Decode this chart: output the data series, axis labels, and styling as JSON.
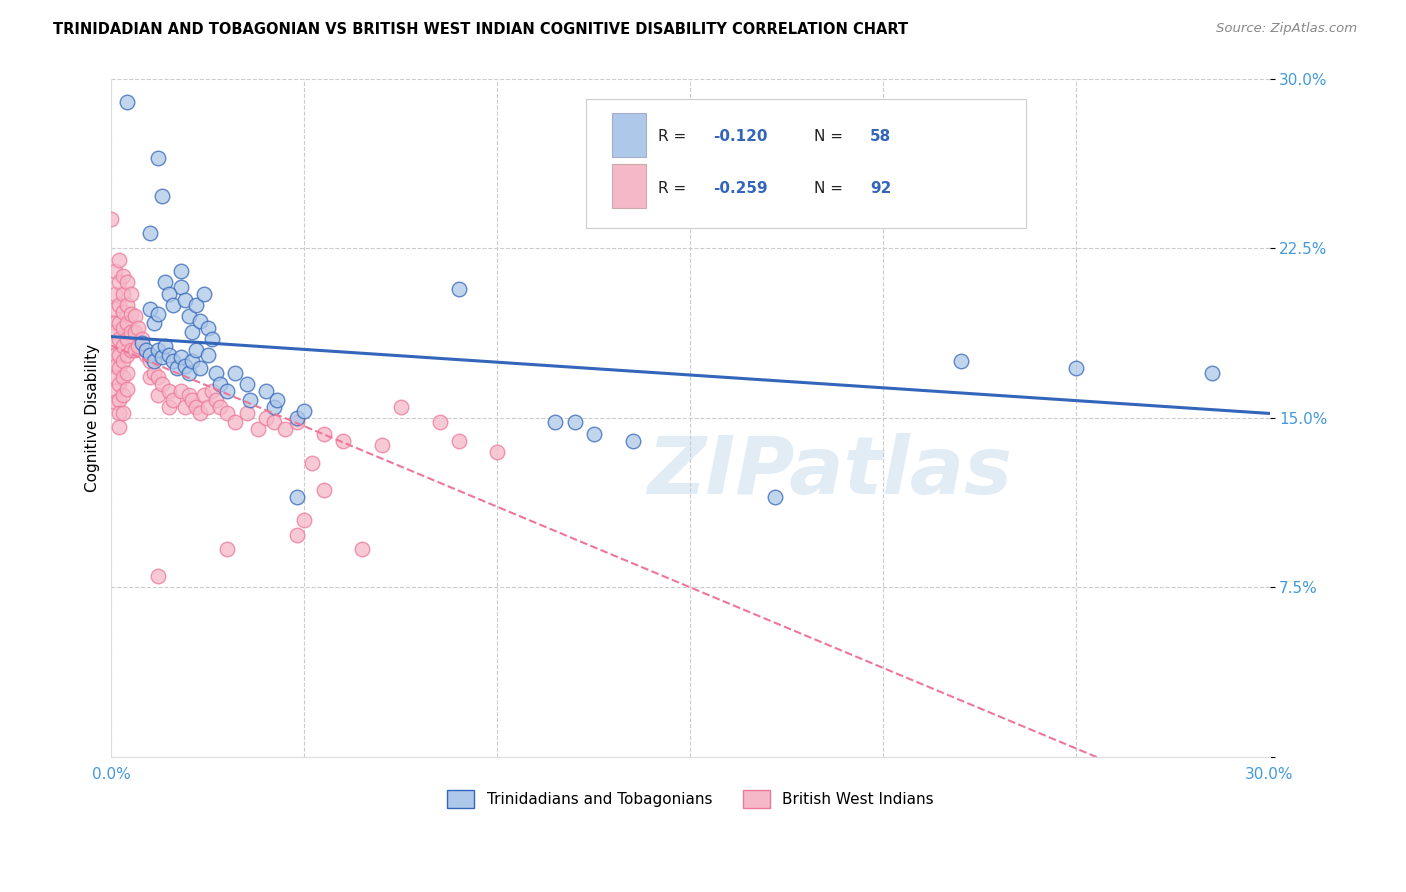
{
  "title": "TRINIDADIAN AND TOBAGONIAN VS BRITISH WEST INDIAN COGNITIVE DISABILITY CORRELATION CHART",
  "source": "Source: ZipAtlas.com",
  "ylabel": "Cognitive Disability",
  "xlim": [
    0.0,
    0.3
  ],
  "ylim": [
    0.0,
    0.3
  ],
  "xticks": [
    0.0,
    0.05,
    0.1,
    0.15,
    0.2,
    0.25,
    0.3
  ],
  "yticks": [
    0.0,
    0.075,
    0.15,
    0.225,
    0.3
  ],
  "xticklabels": [
    "0.0%",
    "",
    "",
    "",
    "",
    "",
    "30.0%"
  ],
  "yticklabels": [
    "",
    "7.5%",
    "15.0%",
    "22.5%",
    "30.0%"
  ],
  "grid_color": "#cccccc",
  "background_color": "#ffffff",
  "color_blue": "#adc8e8",
  "color_pink": "#f5b8c8",
  "line_blue": "#3366bb",
  "line_pink": "#ee7799",
  "tick_color": "#4499dd",
  "watermark": "ZIPatlas",
  "legend_label1": "Trinidadians and Tobagonians",
  "legend_label2": "British West Indians",
  "legend_R1": "R = ",
  "legend_V1": "-0.120",
  "legend_N1_label": "N = ",
  "legend_N1_val": "58",
  "legend_R2": "R = ",
  "legend_V2": "-0.259",
  "legend_N2_label": "N = ",
  "legend_N2_val": "92",
  "blue_trend": [
    0.0,
    0.186,
    0.3,
    0.152
  ],
  "pink_trend": [
    0.0,
    0.182,
    0.3,
    -0.032
  ],
  "scatter_blue": [
    [
      0.004,
      0.29
    ],
    [
      0.012,
      0.265
    ],
    [
      0.013,
      0.248
    ],
    [
      0.01,
      0.232
    ],
    [
      0.018,
      0.208
    ],
    [
      0.01,
      0.198
    ],
    [
      0.011,
      0.192
    ],
    [
      0.012,
      0.196
    ],
    [
      0.014,
      0.21
    ],
    [
      0.015,
      0.205
    ],
    [
      0.016,
      0.2
    ],
    [
      0.018,
      0.215
    ],
    [
      0.019,
      0.202
    ],
    [
      0.02,
      0.195
    ],
    [
      0.021,
      0.188
    ],
    [
      0.022,
      0.2
    ],
    [
      0.023,
      0.193
    ],
    [
      0.024,
      0.205
    ],
    [
      0.025,
      0.19
    ],
    [
      0.026,
      0.185
    ],
    [
      0.008,
      0.183
    ],
    [
      0.009,
      0.18
    ],
    [
      0.01,
      0.178
    ],
    [
      0.011,
      0.175
    ],
    [
      0.012,
      0.18
    ],
    [
      0.013,
      0.177
    ],
    [
      0.014,
      0.182
    ],
    [
      0.015,
      0.178
    ],
    [
      0.016,
      0.175
    ],
    [
      0.017,
      0.172
    ],
    [
      0.018,
      0.177
    ],
    [
      0.019,
      0.173
    ],
    [
      0.02,
      0.17
    ],
    [
      0.021,
      0.175
    ],
    [
      0.022,
      0.18
    ],
    [
      0.023,
      0.172
    ],
    [
      0.025,
      0.178
    ],
    [
      0.027,
      0.17
    ],
    [
      0.028,
      0.165
    ],
    [
      0.03,
      0.162
    ],
    [
      0.032,
      0.17
    ],
    [
      0.035,
      0.165
    ],
    [
      0.036,
      0.158
    ],
    [
      0.04,
      0.162
    ],
    [
      0.042,
      0.155
    ],
    [
      0.043,
      0.158
    ],
    [
      0.048,
      0.15
    ],
    [
      0.05,
      0.153
    ],
    [
      0.09,
      0.207
    ],
    [
      0.12,
      0.148
    ],
    [
      0.125,
      0.143
    ],
    [
      0.135,
      0.14
    ],
    [
      0.172,
      0.115
    ],
    [
      0.25,
      0.172
    ],
    [
      0.285,
      0.17
    ],
    [
      0.22,
      0.175
    ],
    [
      0.115,
      0.148
    ],
    [
      0.048,
      0.115
    ]
  ],
  "scatter_pink": [
    [
      0.0,
      0.238
    ],
    [
      0.001,
      0.215
    ],
    [
      0.001,
      0.205
    ],
    [
      0.001,
      0.198
    ],
    [
      0.001,
      0.192
    ],
    [
      0.001,
      0.188
    ],
    [
      0.001,
      0.183
    ],
    [
      0.001,
      0.178
    ],
    [
      0.001,
      0.173
    ],
    [
      0.001,
      0.168
    ],
    [
      0.001,
      0.162
    ],
    [
      0.001,
      0.157
    ],
    [
      0.002,
      0.22
    ],
    [
      0.002,
      0.21
    ],
    [
      0.002,
      0.2
    ],
    [
      0.002,
      0.192
    ],
    [
      0.002,
      0.185
    ],
    [
      0.002,
      0.178
    ],
    [
      0.002,
      0.172
    ],
    [
      0.002,
      0.165
    ],
    [
      0.002,
      0.158
    ],
    [
      0.002,
      0.152
    ],
    [
      0.002,
      0.146
    ],
    [
      0.003,
      0.213
    ],
    [
      0.003,
      0.205
    ],
    [
      0.003,
      0.197
    ],
    [
      0.003,
      0.19
    ],
    [
      0.003,
      0.182
    ],
    [
      0.003,
      0.175
    ],
    [
      0.003,
      0.168
    ],
    [
      0.003,
      0.16
    ],
    [
      0.003,
      0.152
    ],
    [
      0.004,
      0.21
    ],
    [
      0.004,
      0.2
    ],
    [
      0.004,
      0.192
    ],
    [
      0.004,
      0.185
    ],
    [
      0.004,
      0.178
    ],
    [
      0.004,
      0.17
    ],
    [
      0.004,
      0.163
    ],
    [
      0.005,
      0.205
    ],
    [
      0.005,
      0.196
    ],
    [
      0.005,
      0.188
    ],
    [
      0.005,
      0.18
    ],
    [
      0.006,
      0.195
    ],
    [
      0.006,
      0.188
    ],
    [
      0.006,
      0.18
    ],
    [
      0.007,
      0.19
    ],
    [
      0.007,
      0.182
    ],
    [
      0.008,
      0.185
    ],
    [
      0.009,
      0.178
    ],
    [
      0.01,
      0.175
    ],
    [
      0.01,
      0.168
    ],
    [
      0.011,
      0.17
    ],
    [
      0.012,
      0.168
    ],
    [
      0.012,
      0.16
    ],
    [
      0.013,
      0.165
    ],
    [
      0.015,
      0.162
    ],
    [
      0.015,
      0.155
    ],
    [
      0.016,
      0.158
    ],
    [
      0.018,
      0.162
    ],
    [
      0.019,
      0.155
    ],
    [
      0.02,
      0.16
    ],
    [
      0.021,
      0.158
    ],
    [
      0.022,
      0.155
    ],
    [
      0.023,
      0.152
    ],
    [
      0.024,
      0.16
    ],
    [
      0.025,
      0.155
    ],
    [
      0.026,
      0.162
    ],
    [
      0.027,
      0.158
    ],
    [
      0.028,
      0.155
    ],
    [
      0.03,
      0.152
    ],
    [
      0.032,
      0.148
    ],
    [
      0.035,
      0.152
    ],
    [
      0.038,
      0.145
    ],
    [
      0.04,
      0.15
    ],
    [
      0.042,
      0.148
    ],
    [
      0.045,
      0.145
    ],
    [
      0.048,
      0.148
    ],
    [
      0.052,
      0.13
    ],
    [
      0.055,
      0.118
    ],
    [
      0.065,
      0.092
    ],
    [
      0.03,
      0.092
    ],
    [
      0.012,
      0.08
    ],
    [
      0.05,
      0.105
    ],
    [
      0.048,
      0.098
    ],
    [
      0.055,
      0.143
    ],
    [
      0.06,
      0.14
    ],
    [
      0.07,
      0.138
    ],
    [
      0.075,
      0.155
    ],
    [
      0.085,
      0.148
    ],
    [
      0.09,
      0.14
    ],
    [
      0.1,
      0.135
    ]
  ]
}
